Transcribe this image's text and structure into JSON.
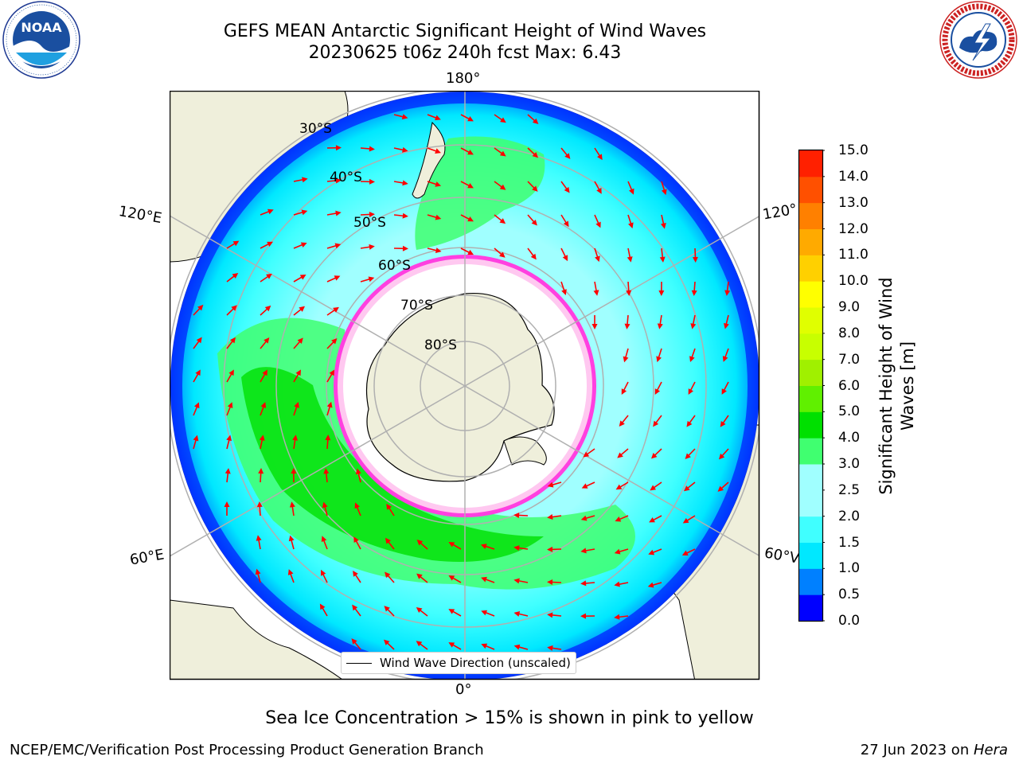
{
  "header": {
    "title_line1": "GEFS MEAN Antarctic Significant Height of Wind Waves",
    "title_line2": "20230625 t06z 240h fcst   Max: 6.43"
  },
  "logos": {
    "noaa_text": "NOAA",
    "noaa_ring_text": "NATIONAL OCEANIC AND ATMOSPHERIC ADMINISTRATION · U.S. DEPARTMENT OF COMMERCE",
    "nws_ring_text": "NATIONAL WEATHER SERVICE"
  },
  "map": {
    "projection": "south-polar-stereographic",
    "land_color": "#efefdb",
    "ice_color": "#ffffff",
    "ocean_color_low": "#00f0ff",
    "arrow_color": "#ff0000",
    "longitude_labels": {
      "top": "180°",
      "bottom": "0°",
      "left_top": "120°E",
      "left_bottom": "60°E",
      "right_top": "120°",
      "right_bottom": "60°V"
    },
    "latitude_labels": [
      "30°S",
      "40°S",
      "50°S",
      "60°S",
      "70°S",
      "80°S"
    ],
    "legend_label": "Wind Wave Direction (unscaled)"
  },
  "colorbar": {
    "label": "Significant Height of Wind Waves [m]",
    "label_line1": "Significant Height of Wind",
    "label_line2": "Waves [m]",
    "ticks": [
      "0.0",
      "1.0",
      "1.5",
      "2.0",
      "3.0",
      "4.0",
      "5.0",
      "6.0",
      "7.0",
      "8.0",
      "9.0",
      "10.0",
      "11.0",
      "12.0",
      "13.0",
      "14.0",
      "15.0"
    ],
    "tick_labels_full": [
      "0.0",
      "0.5",
      "1.0",
      "1.5",
      "2.0",
      "2.5",
      "3.0",
      "4.0",
      "5.0",
      "6.0",
      "7.0",
      "8.0",
      "9.0",
      "10.0",
      "11.0",
      "12.0",
      "13.0",
      "14.0",
      "15.0"
    ],
    "colors": [
      "#0000ff",
      "#0080ff",
      "#00e8ff",
      "#40ffff",
      "#a0ffff",
      "#40ff70",
      "#00e000",
      "#60f000",
      "#a0f000",
      "#c8ff00",
      "#e0ff00",
      "#ffff00",
      "#ffd000",
      "#ffaa00",
      "#ff8000",
      "#ff5000",
      "#ff2000"
    ]
  },
  "footer": {
    "note": "Sea Ice Concentration > 15% is shown in pink to yellow",
    "credit_left": "NCEP/EMC/Verification Post Processing Product Generation Branch",
    "credit_date": "27 Jun 2023 on ",
    "credit_host": "Hera"
  }
}
